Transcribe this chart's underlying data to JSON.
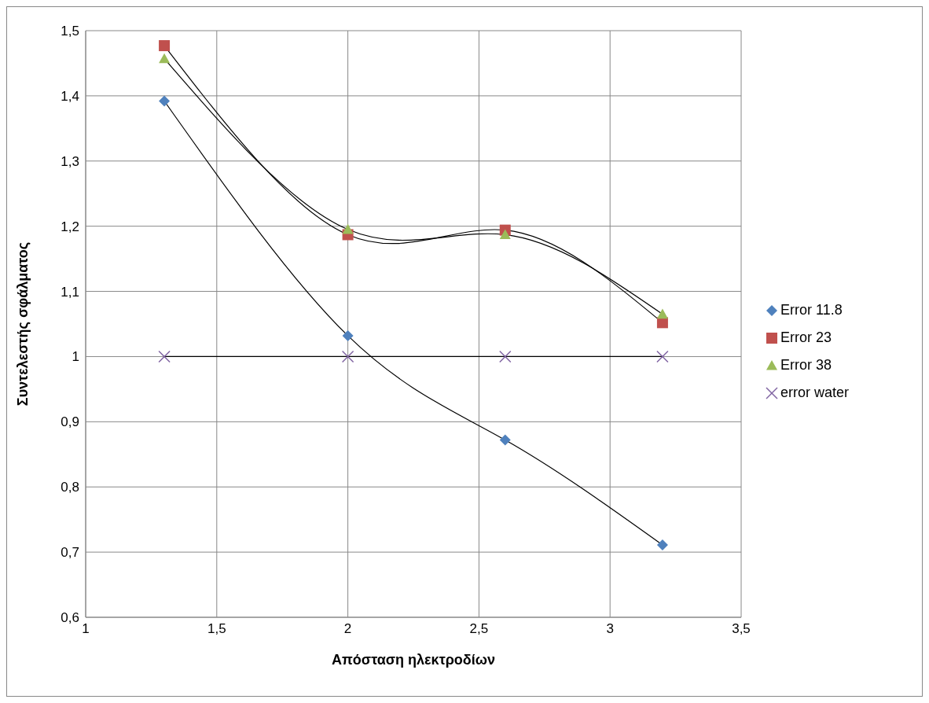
{
  "chart_data": {
    "type": "line",
    "xlabel": "Απόσταση ηλεκτροδίων",
    "ylabel": "Συντελεστής σφάλματος",
    "xlim": [
      1,
      3.5
    ],
    "xticks": [
      1,
      {
        "value": 1.5,
        "label": "1,5"
      },
      2,
      {
        "value": 2.5,
        "label": "2,5"
      },
      3,
      {
        "value": 3.5,
        "label": "3,5"
      }
    ],
    "ylim": [
      0.6,
      1.5
    ],
    "yticks": [
      {
        "value": 0.6,
        "label": "0,6"
      },
      {
        "value": 0.7,
        "label": "0,7"
      },
      {
        "value": 0.8,
        "label": "0,8"
      },
      {
        "value": 0.9,
        "label": "0,9"
      },
      1,
      {
        "value": 1.1,
        "label": "1,1"
      },
      {
        "value": 1.2,
        "label": "1,2"
      },
      {
        "value": 1.3,
        "label": "1,3"
      },
      {
        "value": 1.4,
        "label": "1,4"
      },
      {
        "value": 1.5,
        "label": "1,5"
      }
    ],
    "grid": true,
    "legend": "right",
    "x": [
      1.3,
      2,
      2.6,
      3.2
    ],
    "series": [
      {
        "name": "Error 11.8",
        "color": "#4f81bd",
        "marker": "diamond",
        "values": [
          1.392,
          1.032,
          0.872,
          0.711
        ]
      },
      {
        "name": "Error 23",
        "color": "#c0504d",
        "marker": "square",
        "values": [
          1.477,
          1.187,
          1.194,
          1.052
        ]
      },
      {
        "name": "Error 38",
        "color": "#9bbb59",
        "marker": "triangle",
        "values": [
          1.457,
          1.195,
          1.187,
          1.065
        ]
      },
      {
        "name": "error water",
        "color": "#8064a2",
        "marker": "cross",
        "values": [
          1,
          1,
          1,
          1
        ]
      }
    ]
  }
}
